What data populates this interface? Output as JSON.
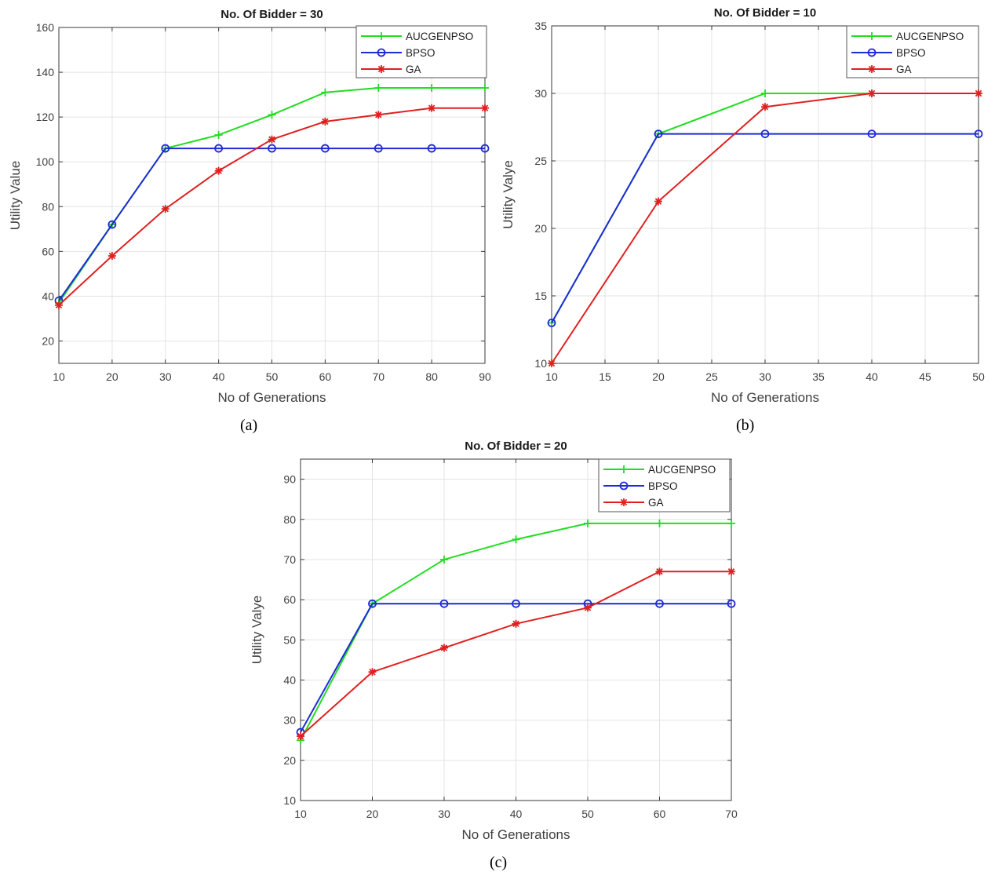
{
  "panel_labels": {
    "a": "(a)",
    "b": "(b)",
    "c": "(c)"
  },
  "chart_data": [
    {
      "id": "a",
      "type": "line",
      "title": "No. Of Bidder = 30",
      "xlabel": "No of Generations",
      "ylabel": "Utility Value",
      "xlim": [
        10,
        90
      ],
      "ylim": [
        10,
        160
      ],
      "xticks": [
        10,
        20,
        30,
        40,
        50,
        60,
        70,
        80,
        90
      ],
      "yticks": [
        20,
        40,
        60,
        80,
        100,
        120,
        140,
        160
      ],
      "grid": true,
      "legend": "top-right",
      "x": [
        10,
        20,
        30,
        40,
        50,
        60,
        70,
        80,
        90
      ],
      "series": [
        {
          "name": "AUCGENPSO",
          "color": "#22dd22",
          "marker": "plus",
          "values": [
            37,
            72,
            106,
            112,
            121,
            131,
            133,
            133,
            133
          ]
        },
        {
          "name": "BPSO",
          "color": "#1f2bd6",
          "marker": "circle",
          "values": [
            38,
            72,
            106,
            106,
            106,
            106,
            106,
            106,
            106
          ]
        },
        {
          "name": "GA",
          "color": "#e02020",
          "marker": "star",
          "values": [
            36,
            58,
            79,
            96,
            110,
            118,
            121,
            124,
            124
          ]
        }
      ]
    },
    {
      "id": "b",
      "type": "line",
      "title": "No. Of Bidder = 10",
      "xlabel": "No of Generations",
      "ylabel": "Utility Valye",
      "xlim": [
        10,
        50
      ],
      "ylim": [
        10,
        35
      ],
      "xticks": [
        10,
        15,
        20,
        25,
        30,
        35,
        40,
        45,
        50
      ],
      "yticks": [
        10,
        15,
        20,
        25,
        30,
        35
      ],
      "grid": true,
      "legend": "top-right",
      "x": [
        10,
        20,
        30,
        40,
        50
      ],
      "series": [
        {
          "name": "AUCGENPSO",
          "color": "#22dd22",
          "marker": "plus",
          "values": [
            13,
            27,
            30,
            30,
            30
          ]
        },
        {
          "name": "BPSO",
          "color": "#1f2bd6",
          "marker": "circle",
          "values": [
            13,
            27,
            27,
            27,
            27
          ]
        },
        {
          "name": "GA",
          "color": "#e02020",
          "marker": "star",
          "values": [
            10,
            22,
            29,
            30,
            30
          ]
        }
      ]
    },
    {
      "id": "c",
      "type": "line",
      "title": "No. Of Bidder = 20",
      "xlabel": "No of Generations",
      "ylabel": "Utility Valye",
      "xlim": [
        10,
        70
      ],
      "ylim": [
        10,
        95
      ],
      "xticks": [
        10,
        20,
        30,
        40,
        50,
        60,
        70
      ],
      "yticks": [
        10,
        20,
        30,
        40,
        50,
        60,
        70,
        80,
        90
      ],
      "grid": true,
      "legend": "top-right",
      "x": [
        10,
        20,
        30,
        40,
        50,
        60,
        70
      ],
      "series": [
        {
          "name": "AUCGENPSO",
          "color": "#22dd22",
          "marker": "plus",
          "values": [
            25,
            59,
            70,
            75,
            79,
            79,
            79
          ]
        },
        {
          "name": "BPSO",
          "color": "#1f2bd6",
          "marker": "circle",
          "values": [
            27,
            59,
            59,
            59,
            59,
            59,
            59
          ]
        },
        {
          "name": "GA",
          "color": "#e02020",
          "marker": "star",
          "values": [
            26,
            42,
            48,
            54,
            58,
            67,
            67
          ]
        }
      ]
    }
  ]
}
